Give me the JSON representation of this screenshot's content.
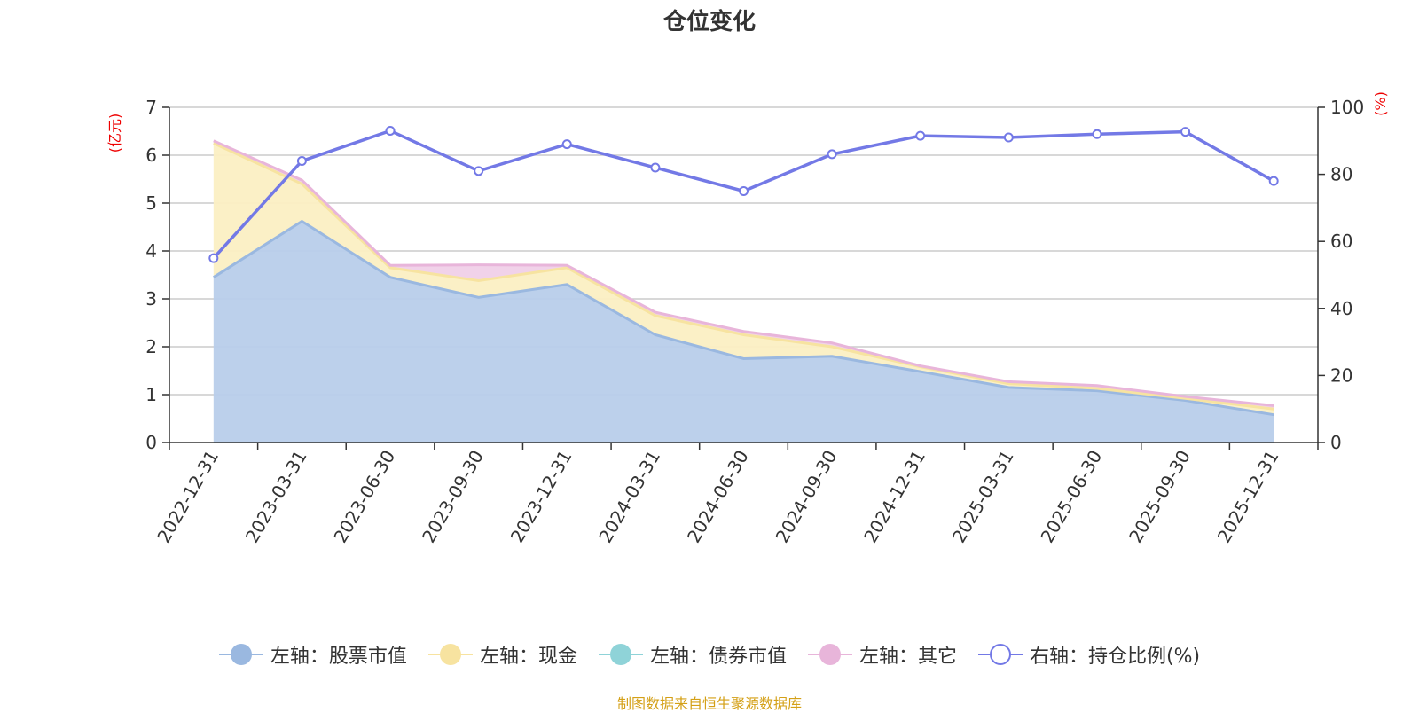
{
  "title": "仓位变化",
  "footer": "制图数据来自恒生聚源数据库",
  "chart_data": {
    "type": "area",
    "title": "仓位变化",
    "categories": [
      "2022-12-31",
      "2023-03-31",
      "2023-06-30",
      "2023-09-30",
      "2023-12-31",
      "2024-03-31",
      "2024-06-30",
      "2024-09-30",
      "2024-12-31",
      "2025-03-31",
      "2025-06-30",
      "2025-09-30",
      "2025-12-31"
    ],
    "left_axis": {
      "unit": "(亿元)",
      "ylim": [
        0,
        7
      ],
      "ticks": [
        "0",
        "1",
        "2",
        "3",
        "4",
        "5",
        "6",
        "7"
      ]
    },
    "right_axis": {
      "unit": "(%)",
      "ylim": [
        0,
        100
      ],
      "ticks": [
        "0",
        "20",
        "40",
        "60",
        "80",
        "100"
      ]
    },
    "series": [
      {
        "name": "左轴：股票市值",
        "axis": "left",
        "stack": true,
        "color": "#9ab8e0",
        "fill": "#b8cdea",
        "values": [
          3.45,
          4.62,
          3.45,
          3.03,
          3.3,
          2.25,
          1.75,
          1.8,
          1.48,
          1.15,
          1.08,
          0.88,
          0.58
        ]
      },
      {
        "name": "左轴：现金",
        "axis": "left",
        "stack": true,
        "color": "#f7e3a0",
        "fill": "#fbefc3",
        "values": [
          2.8,
          0.78,
          0.2,
          0.35,
          0.35,
          0.4,
          0.5,
          0.2,
          0.1,
          0.08,
          0.05,
          0.04,
          0.12
        ]
      },
      {
        "name": "左轴：债券市值",
        "axis": "left",
        "stack": true,
        "color": "#8fd3d8",
        "fill": "#bfe6e9",
        "values": [
          0,
          0,
          0,
          0,
          0,
          0,
          0,
          0,
          0,
          0,
          0,
          0,
          0
        ]
      },
      {
        "name": "左轴：其它",
        "axis": "left",
        "stack": true,
        "color": "#e8b5da",
        "fill": "#f0d0e8",
        "values": [
          0.05,
          0.08,
          0.05,
          0.33,
          0.05,
          0.07,
          0.07,
          0.08,
          0.02,
          0.04,
          0.06,
          0.04,
          0.07
        ]
      },
      {
        "name": "右轴：持仓比例(%)",
        "axis": "right",
        "stack": false,
        "color": "#7379e6",
        "fill": "none",
        "values": [
          55,
          84,
          93,
          81,
          89,
          82,
          75,
          86,
          91.5,
          91,
          92,
          92.7,
          78
        ]
      }
    ]
  }
}
